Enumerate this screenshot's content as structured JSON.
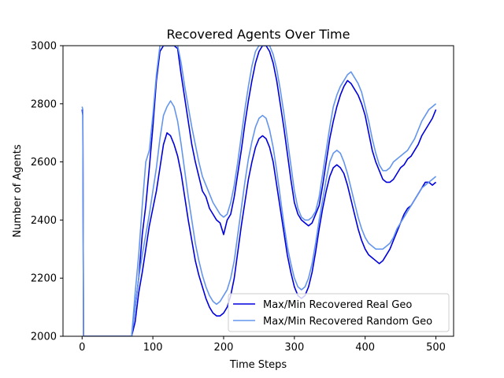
{
  "chart_data": {
    "type": "line",
    "title": "Recovered Agents Over Time",
    "xlabel": "Time Steps",
    "ylabel": "Number of Agents",
    "xlim": [
      -27,
      525
    ],
    "ylim": [
      2000,
      3000
    ],
    "xticks": [
      0,
      100,
      200,
      300,
      400,
      500
    ],
    "yticks": [
      2000,
      2200,
      2400,
      2600,
      2800,
      3000
    ],
    "xtick_labels": [
      "0",
      "100",
      "200",
      "300",
      "400",
      "500"
    ],
    "ytick_labels": [
      "2000",
      "2200",
      "2400",
      "2600",
      "2800",
      "3000"
    ],
    "grid": false,
    "legend_position": "lower-right",
    "colors": {
      "real": "#0000dd",
      "random": "#6495ed"
    },
    "legend": [
      "Max/Min Recovered Real Geo",
      "Max/Min Recovered Random Geo"
    ],
    "series": [
      {
        "name": "Max/Min Recovered Real Geo",
        "role": "max",
        "x": [
          0,
          1,
          2,
          70,
          75,
          80,
          85,
          90,
          95,
          100,
          105,
          110,
          115,
          120,
          125,
          130,
          135,
          140,
          145,
          150,
          155,
          160,
          165,
          170,
          175,
          180,
          185,
          190,
          195,
          200,
          205,
          210,
          215,
          220,
          225,
          230,
          235,
          240,
          245,
          250,
          255,
          260,
          265,
          270,
          275,
          280,
          285,
          290,
          295,
          300,
          305,
          310,
          315,
          320,
          325,
          330,
          335,
          340,
          345,
          350,
          355,
          360,
          365,
          370,
          375,
          380,
          385,
          390,
          395,
          400,
          405,
          410,
          415,
          420,
          425,
          430,
          435,
          440,
          445,
          450,
          455,
          460,
          465,
          470,
          475,
          480,
          485,
          490,
          495,
          500
        ],
        "y": [
          2780,
          2760,
          2000,
          2000,
          2100,
          2200,
          2350,
          2450,
          2580,
          2720,
          2880,
          2980,
          3000,
          3000,
          3000,
          3000,
          2990,
          2900,
          2820,
          2740,
          2660,
          2600,
          2550,
          2500,
          2480,
          2440,
          2420,
          2400,
          2390,
          2350,
          2400,
          2420,
          2480,
          2560,
          2640,
          2730,
          2810,
          2880,
          2940,
          2980,
          3000,
          3000,
          2980,
          2940,
          2880,
          2800,
          2720,
          2630,
          2540,
          2460,
          2420,
          2400,
          2390,
          2380,
          2390,
          2420,
          2450,
          2520,
          2600,
          2680,
          2740,
          2790,
          2830,
          2860,
          2880,
          2870,
          2850,
          2830,
          2800,
          2760,
          2700,
          2640,
          2600,
          2570,
          2540,
          2530,
          2530,
          2540,
          2560,
          2580,
          2590,
          2610,
          2620,
          2640,
          2660,
          2690,
          2710,
          2730,
          2750,
          2780
        ]
      },
      {
        "name": "Max/Min Recovered Real Geo",
        "role": "min",
        "x": [
          70,
          75,
          80,
          85,
          90,
          95,
          100,
          105,
          110,
          115,
          120,
          125,
          130,
          135,
          140,
          145,
          150,
          155,
          160,
          165,
          170,
          175,
          180,
          185,
          190,
          195,
          200,
          205,
          210,
          215,
          220,
          225,
          230,
          235,
          240,
          245,
          250,
          255,
          260,
          265,
          270,
          275,
          280,
          285,
          290,
          295,
          300,
          305,
          310,
          315,
          320,
          325,
          330,
          335,
          340,
          345,
          350,
          355,
          360,
          365,
          370,
          375,
          380,
          385,
          390,
          395,
          400,
          405,
          410,
          415,
          420,
          425,
          430,
          435,
          440,
          445,
          450,
          455,
          460,
          465,
          470,
          475,
          480,
          485,
          490,
          495,
          500
        ],
        "y": [
          2000,
          2050,
          2150,
          2220,
          2300,
          2380,
          2440,
          2500,
          2580,
          2660,
          2700,
          2690,
          2660,
          2620,
          2560,
          2480,
          2400,
          2330,
          2260,
          2210,
          2170,
          2130,
          2100,
          2080,
          2070,
          2070,
          2080,
          2100,
          2140,
          2200,
          2290,
          2380,
          2460,
          2540,
          2600,
          2650,
          2680,
          2690,
          2680,
          2650,
          2600,
          2520,
          2440,
          2360,
          2280,
          2220,
          2170,
          2140,
          2130,
          2140,
          2170,
          2220,
          2290,
          2370,
          2440,
          2500,
          2550,
          2580,
          2590,
          2580,
          2560,
          2520,
          2470,
          2420,
          2370,
          2330,
          2300,
          2280,
          2270,
          2260,
          2250,
          2260,
          2280,
          2300,
          2330,
          2360,
          2390,
          2420,
          2440,
          2450,
          2470,
          2490,
          2510,
          2530,
          2530,
          2520,
          2530
        ]
      },
      {
        "name": "Max/Min Recovered Random Geo",
        "role": "max",
        "x": [
          0,
          1,
          2,
          70,
          75,
          80,
          85,
          90,
          95,
          100,
          105,
          110,
          115,
          120,
          125,
          130,
          135,
          140,
          145,
          150,
          155,
          160,
          165,
          170,
          175,
          180,
          185,
          190,
          195,
          200,
          205,
          210,
          215,
          220,
          225,
          230,
          235,
          240,
          245,
          250,
          255,
          260,
          265,
          270,
          275,
          280,
          285,
          290,
          295,
          300,
          305,
          310,
          315,
          320,
          325,
          330,
          335,
          340,
          345,
          350,
          355,
          360,
          365,
          370,
          375,
          380,
          385,
          390,
          395,
          400,
          405,
          410,
          415,
          420,
          425,
          430,
          435,
          440,
          445,
          450,
          455,
          460,
          465,
          470,
          475,
          480,
          485,
          490,
          495,
          500
        ],
        "y": [
          2790,
          2780,
          2000,
          2000,
          2150,
          2280,
          2450,
          2600,
          2640,
          2760,
          2900,
          3000,
          3000,
          3000,
          3000,
          3000,
          3000,
          2940,
          2860,
          2790,
          2720,
          2660,
          2600,
          2550,
          2520,
          2490,
          2460,
          2440,
          2420,
          2410,
          2420,
          2460,
          2520,
          2600,
          2690,
          2780,
          2860,
          2930,
          2980,
          3000,
          3000,
          3000,
          3000,
          2970,
          2920,
          2850,
          2770,
          2680,
          2590,
          2500,
          2440,
          2410,
          2400,
          2400,
          2410,
          2430,
          2480,
          2560,
          2640,
          2720,
          2790,
          2830,
          2860,
          2880,
          2900,
          2910,
          2890,
          2870,
          2840,
          2790,
          2740,
          2680,
          2630,
          2590,
          2570,
          2570,
          2580,
          2600,
          2610,
          2620,
          2630,
          2640,
          2660,
          2680,
          2710,
          2740,
          2760,
          2780,
          2790,
          2800
        ]
      },
      {
        "name": "Max/Min Recovered Random Geo",
        "role": "min",
        "x": [
          70,
          75,
          80,
          85,
          90,
          95,
          100,
          105,
          110,
          115,
          120,
          125,
          130,
          135,
          140,
          145,
          150,
          155,
          160,
          165,
          170,
          175,
          180,
          185,
          190,
          195,
          200,
          205,
          210,
          215,
          220,
          225,
          230,
          235,
          240,
          245,
          250,
          255,
          260,
          265,
          270,
          275,
          280,
          285,
          290,
          295,
          300,
          305,
          310,
          315,
          320,
          325,
          330,
          335,
          340,
          345,
          350,
          355,
          360,
          365,
          370,
          375,
          380,
          385,
          390,
          395,
          400,
          405,
          410,
          415,
          420,
          425,
          430,
          435,
          440,
          445,
          450,
          455,
          460,
          465,
          470,
          475,
          480,
          485,
          490,
          495,
          500
        ],
        "y": [
          2000,
          2100,
          2200,
          2280,
          2350,
          2420,
          2500,
          2580,
          2680,
          2760,
          2790,
          2810,
          2790,
          2740,
          2660,
          2570,
          2480,
          2400,
          2320,
          2260,
          2210,
          2170,
          2140,
          2120,
          2110,
          2120,
          2140,
          2160,
          2200,
          2260,
          2350,
          2440,
          2530,
          2610,
          2670,
          2720,
          2750,
          2760,
          2750,
          2710,
          2650,
          2570,
          2480,
          2390,
          2310,
          2250,
          2200,
          2170,
          2160,
          2170,
          2200,
          2250,
          2320,
          2400,
          2470,
          2540,
          2600,
          2630,
          2640,
          2630,
          2600,
          2560,
          2510,
          2460,
          2410,
          2370,
          2340,
          2320,
          2310,
          2300,
          2300,
          2300,
          2310,
          2320,
          2340,
          2370,
          2390,
          2410,
          2430,
          2450,
          2470,
          2490,
          2510,
          2520,
          2530,
          2540,
          2550
        ]
      }
    ]
  }
}
